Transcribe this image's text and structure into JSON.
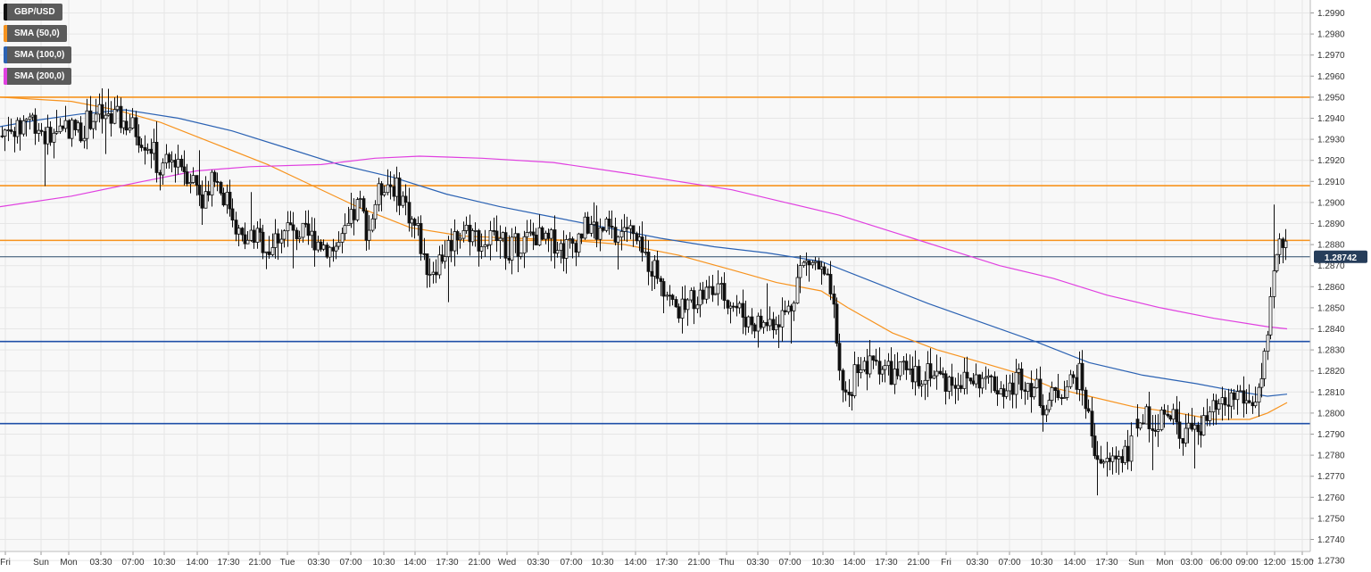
{
  "chart_data": {
    "type": "candlestick",
    "title": "",
    "symbol": "GBP/USD",
    "legend": [
      {
        "label": "GBP/USD",
        "color": "#111111"
      },
      {
        "label": "SMA (50,0)",
        "color": "#f7931e"
      },
      {
        "label": "SMA (100,0)",
        "color": "#2b62b3"
      },
      {
        "label": "SMA (200,0)",
        "color": "#e040e0"
      }
    ],
    "legend_position": "top-left",
    "ylim": [
      1.2722,
      1.2998
    ],
    "y_ticks": [
      "1.2730",
      "1.2740",
      "1.2750",
      "1.2760",
      "1.2770",
      "1.2780",
      "1.2790",
      "1.2800",
      "1.2810",
      "1.2820",
      "1.2830",
      "1.2840",
      "1.2850",
      "1.2860",
      "1.2870",
      "1.2880",
      "1.2890",
      "1.2900",
      "1.2910",
      "1.2920",
      "1.2930",
      "1.2940",
      "1.2950",
      "1.2960",
      "1.2970",
      "1.2980",
      "1.2990"
    ],
    "x_ticks": [
      "Fri",
      "Sun",
      "Mon",
      "03:30",
      "07:00",
      "10:30",
      "14:00",
      "17:30",
      "21:00",
      "Tue",
      "03:30",
      "07:00",
      "10:30",
      "14:00",
      "17:30",
      "21:00",
      "Wed",
      "03:30",
      "07:00",
      "10:30",
      "14:00",
      "17:30",
      "21:00",
      "Thu",
      "03:30",
      "07:00",
      "10:30",
      "14:00",
      "17:30",
      "21:00",
      "Fri",
      "03:30",
      "07:00",
      "10:30",
      "14:00",
      "17:30",
      "Sun",
      "Mon",
      "03:00",
      "06:00",
      "09:00",
      "12:00",
      "15:00"
    ],
    "grid": true,
    "current_price": "1.28742",
    "current_price_value": 1.28742,
    "horizontal_levels": [
      {
        "value": 1.295,
        "color": "#f7931e"
      },
      {
        "value": 1.2908,
        "color": "#f7931e"
      },
      {
        "value": 1.2882,
        "color": "#f7931e"
      },
      {
        "value": 1.2834,
        "color": "#1f4fa8"
      },
      {
        "value": 1.2795,
        "color": "#1f4fa8"
      },
      {
        "value": 1.28742,
        "color": "#2a4a6a"
      }
    ],
    "close_path": [
      [
        0,
        1.293
      ],
      [
        10,
        1.2938
      ],
      [
        20,
        1.2933
      ],
      [
        30,
        1.2942
      ],
      [
        40,
        1.2938
      ],
      [
        50,
        1.2932
      ],
      [
        60,
        1.293
      ],
      [
        70,
        1.2938
      ],
      [
        80,
        1.2935
      ],
      [
        90,
        1.2934
      ],
      [
        100,
        1.294
      ],
      [
        110,
        1.2942
      ],
      [
        120,
        1.2938
      ],
      [
        130,
        1.294
      ],
      [
        140,
        1.2938
      ],
      [
        150,
        1.2935
      ],
      [
        160,
        1.293
      ],
      [
        170,
        1.2926
      ],
      [
        178,
        1.2915
      ],
      [
        188,
        1.2918
      ],
      [
        198,
        1.2922
      ],
      [
        208,
        1.2915
      ],
      [
        218,
        1.291
      ],
      [
        228,
        1.2902
      ],
      [
        238,
        1.2915
      ],
      [
        248,
        1.2905
      ],
      [
        258,
        1.2898
      ],
      [
        265,
        1.2888
      ],
      [
        272,
        1.288
      ],
      [
        282,
        1.2885
      ],
      [
        292,
        1.2882
      ],
      [
        302,
        1.2878
      ],
      [
        312,
        1.2885
      ],
      [
        322,
        1.2888
      ],
      [
        332,
        1.2886
      ],
      [
        342,
        1.2884
      ],
      [
        352,
        1.2883
      ],
      [
        362,
        1.288
      ],
      [
        372,
        1.2878
      ],
      [
        382,
        1.288
      ],
      [
        392,
        1.289
      ],
      [
        402,
        1.29
      ],
      [
        412,
        1.2885
      ],
      [
        420,
        1.29
      ],
      [
        430,
        1.291
      ],
      [
        440,
        1.2908
      ],
      [
        450,
        1.2903
      ],
      [
        460,
        1.2892
      ],
      [
        468,
        1.2886
      ],
      [
        475,
        1.2872
      ],
      [
        482,
        1.2868
      ],
      [
        490,
        1.2872
      ],
      [
        500,
        1.2878
      ],
      [
        510,
        1.2885
      ],
      [
        520,
        1.2888
      ],
      [
        530,
        1.2885
      ],
      [
        540,
        1.288
      ],
      [
        550,
        1.2883
      ],
      [
        560,
        1.2882
      ],
      [
        570,
        1.2878
      ],
      [
        580,
        1.288
      ],
      [
        590,
        1.2882
      ],
      [
        600,
        1.2885
      ],
      [
        610,
        1.288
      ],
      [
        620,
        1.2882
      ],
      [
        630,
        1.2878
      ],
      [
        640,
        1.288
      ],
      [
        650,
        1.2885
      ],
      [
        660,
        1.289
      ],
      [
        670,
        1.2885
      ],
      [
        680,
        1.2888
      ],
      [
        690,
        1.2882
      ],
      [
        700,
        1.289
      ],
      [
        710,
        1.2882
      ],
      [
        720,
        1.2875
      ],
      [
        730,
        1.287
      ],
      [
        740,
        1.2865
      ],
      [
        748,
        1.2856
      ],
      [
        755,
        1.285
      ],
      [
        765,
        1.2848
      ],
      [
        775,
        1.2855
      ],
      [
        785,
        1.2856
      ],
      [
        795,
        1.2858
      ],
      [
        805,
        1.2857
      ],
      [
        815,
        1.2855
      ],
      [
        825,
        1.285
      ],
      [
        835,
        1.2845
      ],
      [
        845,
        1.2843
      ],
      [
        855,
        1.2842
      ],
      [
        865,
        1.2844
      ],
      [
        875,
        1.2846
      ],
      [
        885,
        1.285
      ],
      [
        895,
        1.2868
      ],
      [
        905,
        1.2872
      ],
      [
        915,
        1.287
      ],
      [
        925,
        1.2862
      ],
      [
        932,
        1.2855
      ],
      [
        938,
        1.2822
      ],
      [
        945,
        1.281
      ],
      [
        952,
        1.2808
      ],
      [
        960,
        1.2825
      ],
      [
        970,
        1.282
      ],
      [
        980,
        1.2825
      ],
      [
        990,
        1.2822
      ],
      [
        1000,
        1.2818
      ],
      [
        1010,
        1.282
      ],
      [
        1020,
        1.2816
      ],
      [
        1030,
        1.2818
      ],
      [
        1040,
        1.2822
      ],
      [
        1050,
        1.2818
      ],
      [
        1060,
        1.2815
      ],
      [
        1070,
        1.2816
      ],
      [
        1080,
        1.2815
      ],
      [
        1090,
        1.2816
      ],
      [
        1100,
        1.2815
      ],
      [
        1110,
        1.2815
      ],
      [
        1120,
        1.2812
      ],
      [
        1130,
        1.281
      ],
      [
        1140,
        1.2818
      ],
      [
        1150,
        1.2815
      ],
      [
        1160,
        1.2812
      ],
      [
        1170,
        1.2803
      ],
      [
        1180,
        1.2808
      ],
      [
        1190,
        1.2812
      ],
      [
        1200,
        1.2815
      ],
      [
        1210,
        1.2818
      ],
      [
        1218,
        1.28
      ],
      [
        1225,
        1.2785
      ],
      [
        1232,
        1.2778
      ],
      [
        1240,
        1.2775
      ],
      [
        1250,
        1.278
      ],
      [
        1260,
        1.2782
      ],
      [
        1268,
        1.2784
      ],
      [
        1278,
        1.28
      ],
      [
        1288,
        1.2795
      ],
      [
        1298,
        1.2798
      ],
      [
        1308,
        1.2798
      ],
      [
        1318,
        1.2795
      ],
      [
        1328,
        1.279
      ],
      [
        1338,
        1.2795
      ],
      [
        1348,
        1.2794
      ],
      [
        1358,
        1.28
      ],
      [
        1368,
        1.2802
      ],
      [
        1378,
        1.2806
      ],
      [
        1388,
        1.281
      ],
      [
        1398,
        1.2804
      ],
      [
        1408,
        1.2808
      ],
      [
        1414,
        1.2818
      ],
      [
        1420,
        1.2832
      ],
      [
        1426,
        1.2865
      ],
      [
        1432,
        1.2878
      ],
      [
        1438,
        1.2882
      ],
      [
        1444,
        1.2874
      ]
    ],
    "gaps_after_x": [
      1268
    ],
    "sma_series": [
      {
        "color": "#f7931e",
        "points": [
          [
            0,
            1.295
          ],
          [
            80,
            1.2948
          ],
          [
            130,
            1.2944
          ],
          [
            180,
            1.2938
          ],
          [
            240,
            1.2928
          ],
          [
            300,
            1.2918
          ],
          [
            350,
            1.2908
          ],
          [
            400,
            1.2898
          ],
          [
            460,
            1.2888
          ],
          [
            520,
            1.2884
          ],
          [
            580,
            1.2883
          ],
          [
            640,
            1.2882
          ],
          [
            700,
            1.288
          ],
          [
            760,
            1.2875
          ],
          [
            820,
            1.2868
          ],
          [
            870,
            1.2862
          ],
          [
            920,
            1.2858
          ],
          [
            950,
            1.285
          ],
          [
            1000,
            1.2838
          ],
          [
            1050,
            1.283
          ],
          [
            1100,
            1.2824
          ],
          [
            1140,
            1.2819
          ],
          [
            1180,
            1.2812
          ],
          [
            1220,
            1.2808
          ],
          [
            1270,
            1.2803
          ],
          [
            1320,
            1.28
          ],
          [
            1360,
            1.2797
          ],
          [
            1400,
            1.2797
          ],
          [
            1420,
            1.28
          ],
          [
            1442,
            1.2805
          ]
        ]
      },
      {
        "color": "#2b62b3",
        "points": [
          [
            0,
            1.2936
          ],
          [
            40,
            1.2939
          ],
          [
            90,
            1.2942
          ],
          [
            140,
            1.2944
          ],
          [
            200,
            1.294
          ],
          [
            260,
            1.2934
          ],
          [
            320,
            1.2926
          ],
          [
            380,
            1.2918
          ],
          [
            440,
            1.2912
          ],
          [
            500,
            1.2904
          ],
          [
            560,
            1.2898
          ],
          [
            620,
            1.2893
          ],
          [
            680,
            1.2888
          ],
          [
            740,
            1.2883
          ],
          [
            800,
            1.2879
          ],
          [
            860,
            1.2876
          ],
          [
            920,
            1.2872
          ],
          [
            980,
            1.2862
          ],
          [
            1040,
            1.2852
          ],
          [
            1100,
            1.2843
          ],
          [
            1160,
            1.2834
          ],
          [
            1220,
            1.2824
          ],
          [
            1280,
            1.2818
          ],
          [
            1340,
            1.2814
          ],
          [
            1390,
            1.281
          ],
          [
            1420,
            1.2808
          ],
          [
            1442,
            1.2809
          ]
        ]
      },
      {
        "color": "#e040e0",
        "points": [
          [
            0,
            1.2898
          ],
          [
            80,
            1.2903
          ],
          [
            160,
            1.291
          ],
          [
            220,
            1.2915
          ],
          [
            280,
            1.2917
          ],
          [
            360,
            1.2918
          ],
          [
            420,
            1.2921
          ],
          [
            470,
            1.2922
          ],
          [
            540,
            1.2921
          ],
          [
            620,
            1.2919
          ],
          [
            700,
            1.2914
          ],
          [
            760,
            1.291
          ],
          [
            820,
            1.2906
          ],
          [
            880,
            1.29
          ],
          [
            940,
            1.2894
          ],
          [
            1000,
            1.2886
          ],
          [
            1060,
            1.2878
          ],
          [
            1120,
            1.287
          ],
          [
            1180,
            1.2864
          ],
          [
            1240,
            1.2856
          ],
          [
            1300,
            1.285
          ],
          [
            1360,
            1.2845
          ],
          [
            1420,
            1.2841
          ],
          [
            1442,
            1.284
          ]
        ]
      }
    ]
  }
}
